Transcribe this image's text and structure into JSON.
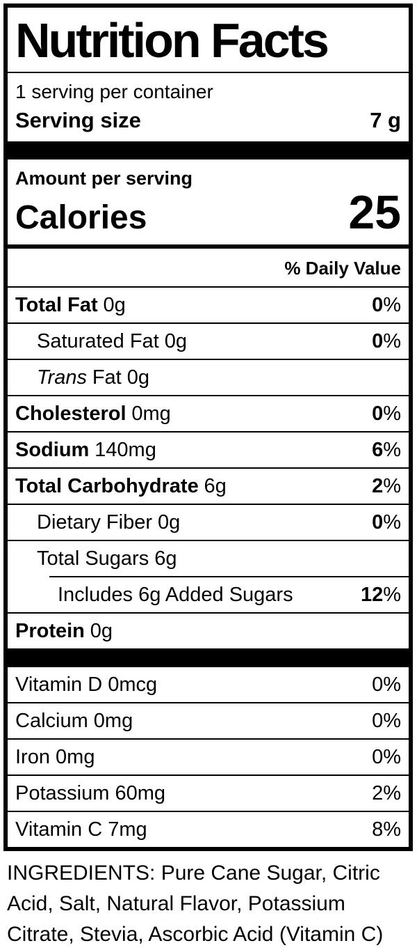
{
  "colors": {
    "text": "#000000",
    "background": "#ffffff",
    "border": "#000000"
  },
  "header": {
    "title": "Nutrition Facts",
    "servings_per_container": "1 serving per container",
    "serving_size_label": "Serving size",
    "serving_size_value": "7 g"
  },
  "calories": {
    "amount_per_serving_label": "Amount per serving",
    "calories_label": "Calories",
    "calories_value": "25"
  },
  "daily_value_header": "% Daily Value",
  "rows": [
    {
      "bold": "Total Fat",
      "rest": "0g",
      "dv": "0",
      "pct": "%"
    },
    {
      "text": "Saturated Fat 0g",
      "dv": "0",
      "pct": "%"
    },
    {
      "italic": "Trans",
      "text": "Fat 0g"
    },
    {
      "bold": "Cholesterol",
      "rest": "0mg",
      "dv": "0",
      "pct": "%"
    },
    {
      "bold": "Sodium",
      "rest": "140mg",
      "dv": "6",
      "pct": "%"
    },
    {
      "bold": "Total Carbohydrate",
      "rest": "6g",
      "dv": "2",
      "pct": "%"
    },
    {
      "text": "Dietary Fiber 0g",
      "dv": "0",
      "pct": "%"
    },
    {
      "text": "Total Sugars 6g"
    },
    {
      "text": "Includes 6g Added Sugars",
      "dv": "12",
      "pct": "%"
    },
    {
      "bold": "Protein",
      "rest": "0g"
    }
  ],
  "vitamins": [
    {
      "text": "Vitamin D 0mcg",
      "dv": "0",
      "pct": "%"
    },
    {
      "text": "Calcium 0mg",
      "dv": "0",
      "pct": "%"
    },
    {
      "text": "Iron 0mg",
      "dv": "0",
      "pct": "%"
    },
    {
      "text": "Potassium 60mg",
      "dv": "2",
      "pct": "%"
    },
    {
      "text": "Vitamin C 7mg",
      "dv": "8",
      "pct": "%"
    }
  ],
  "ingredients": "INGREDIENTS: Pure Cane Sugar, Citric Acid, Salt, Natural Flavor, Potassium Citrate, Stevia, Ascorbic Acid (Vitamin C)"
}
